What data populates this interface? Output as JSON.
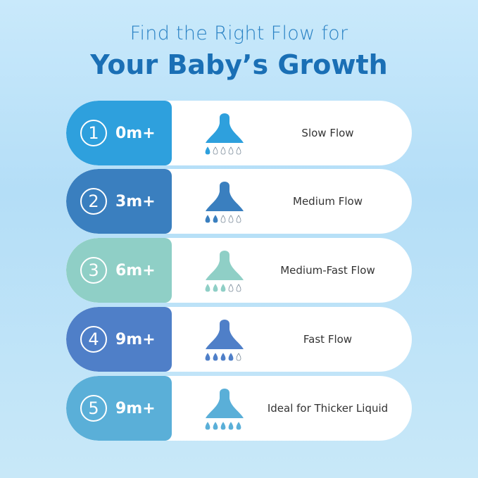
{
  "title_line1": "Find the Right Flow for",
  "title_line2": "Your Baby’s Growth",
  "rows": [
    {
      "number": "1",
      "age": "0m+",
      "label": "Slow Flow",
      "color": "#2ea0dd",
      "drops_filled": 1,
      "icon": "nipple-icon"
    },
    {
      "number": "2",
      "age": "3m+",
      "label": "Medium Flow",
      "color": "#3a7fbf",
      "drops_filled": 2,
      "icon": "nipple-icon"
    },
    {
      "number": "3",
      "age": "6m+",
      "label": "Medium-Fast Flow",
      "color": "#8fcfc6",
      "drops_filled": 3,
      "icon": "nipple-icon"
    },
    {
      "number": "4",
      "age": "9m+",
      "label": "Fast Flow",
      "color": "#4f7fc8",
      "drops_filled": 4,
      "icon": "nipple-icon"
    },
    {
      "number": "5",
      "age": "9m+",
      "label": "Ideal for Thicker Liquid",
      "color": "#5aafd8",
      "drops_filled": 5,
      "icon": "nipple-icon"
    }
  ]
}
